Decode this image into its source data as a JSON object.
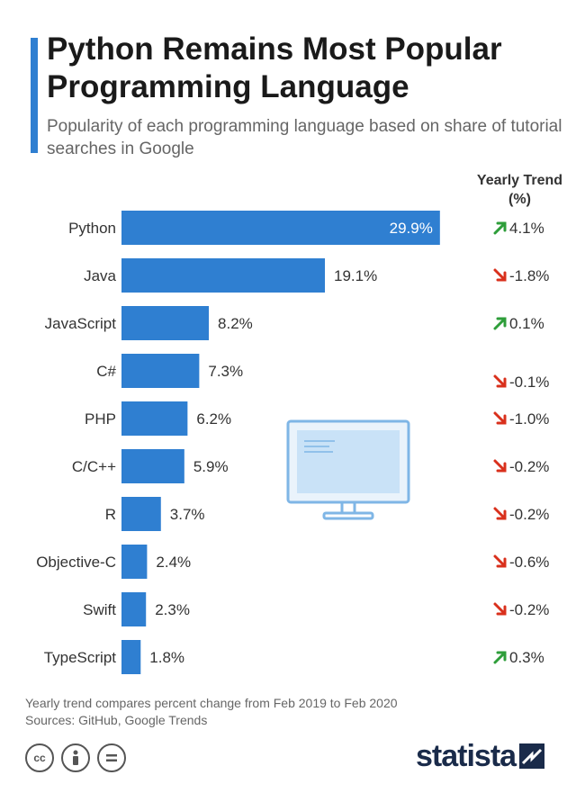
{
  "header": {
    "title": "Python Remains Most Popular Programming Language",
    "subtitle": "Popularity of each programming language based on share of tutorial searches in Google"
  },
  "trend_header": "Yearly Trend (%)",
  "chart_data": {
    "type": "bar",
    "orientation": "horizontal",
    "categories": [
      "Python",
      "Java",
      "JavaScript",
      "C#",
      "PHP",
      "C/C++",
      "R",
      "Objective-C",
      "Swift",
      "TypeScript"
    ],
    "values": [
      29.9,
      19.1,
      8.2,
      7.3,
      6.2,
      5.9,
      3.7,
      2.4,
      2.3,
      1.8
    ],
    "value_labels": [
      "29.9%",
      "19.1%",
      "8.2%",
      "7.3%",
      "6.2%",
      "5.9%",
      "3.7%",
      "2.4%",
      "2.3%",
      "1.8%"
    ],
    "trend_values": [
      4.1,
      -1.8,
      0.1,
      -0.1,
      -1.0,
      -0.2,
      -0.2,
      -0.6,
      -0.2,
      0.3
    ],
    "trend_labels": [
      "4.1%",
      "-1.8%",
      "0.1%",
      "-0.1%",
      "-1.0%",
      "-0.2%",
      "-0.2%",
      "-0.6%",
      "-0.2%",
      "0.3%"
    ],
    "xlim": [
      0,
      30
    ],
    "grid": false,
    "legend": "none"
  },
  "colors": {
    "bar": "#2f7fd1",
    "trend_up": "#2e9e3a",
    "trend_down": "#d9301c",
    "accent": "#2f7fd1"
  },
  "footer": {
    "note": "Yearly trend compares percent change from Feb 2019 to Feb 2020",
    "sources": "Sources: GitHub, Google Trends",
    "brand": "statista"
  },
  "icons": [
    "cc-icon",
    "by-icon",
    "nd-icon",
    "statista-logo-icon",
    "monitor-illustration-icon"
  ]
}
